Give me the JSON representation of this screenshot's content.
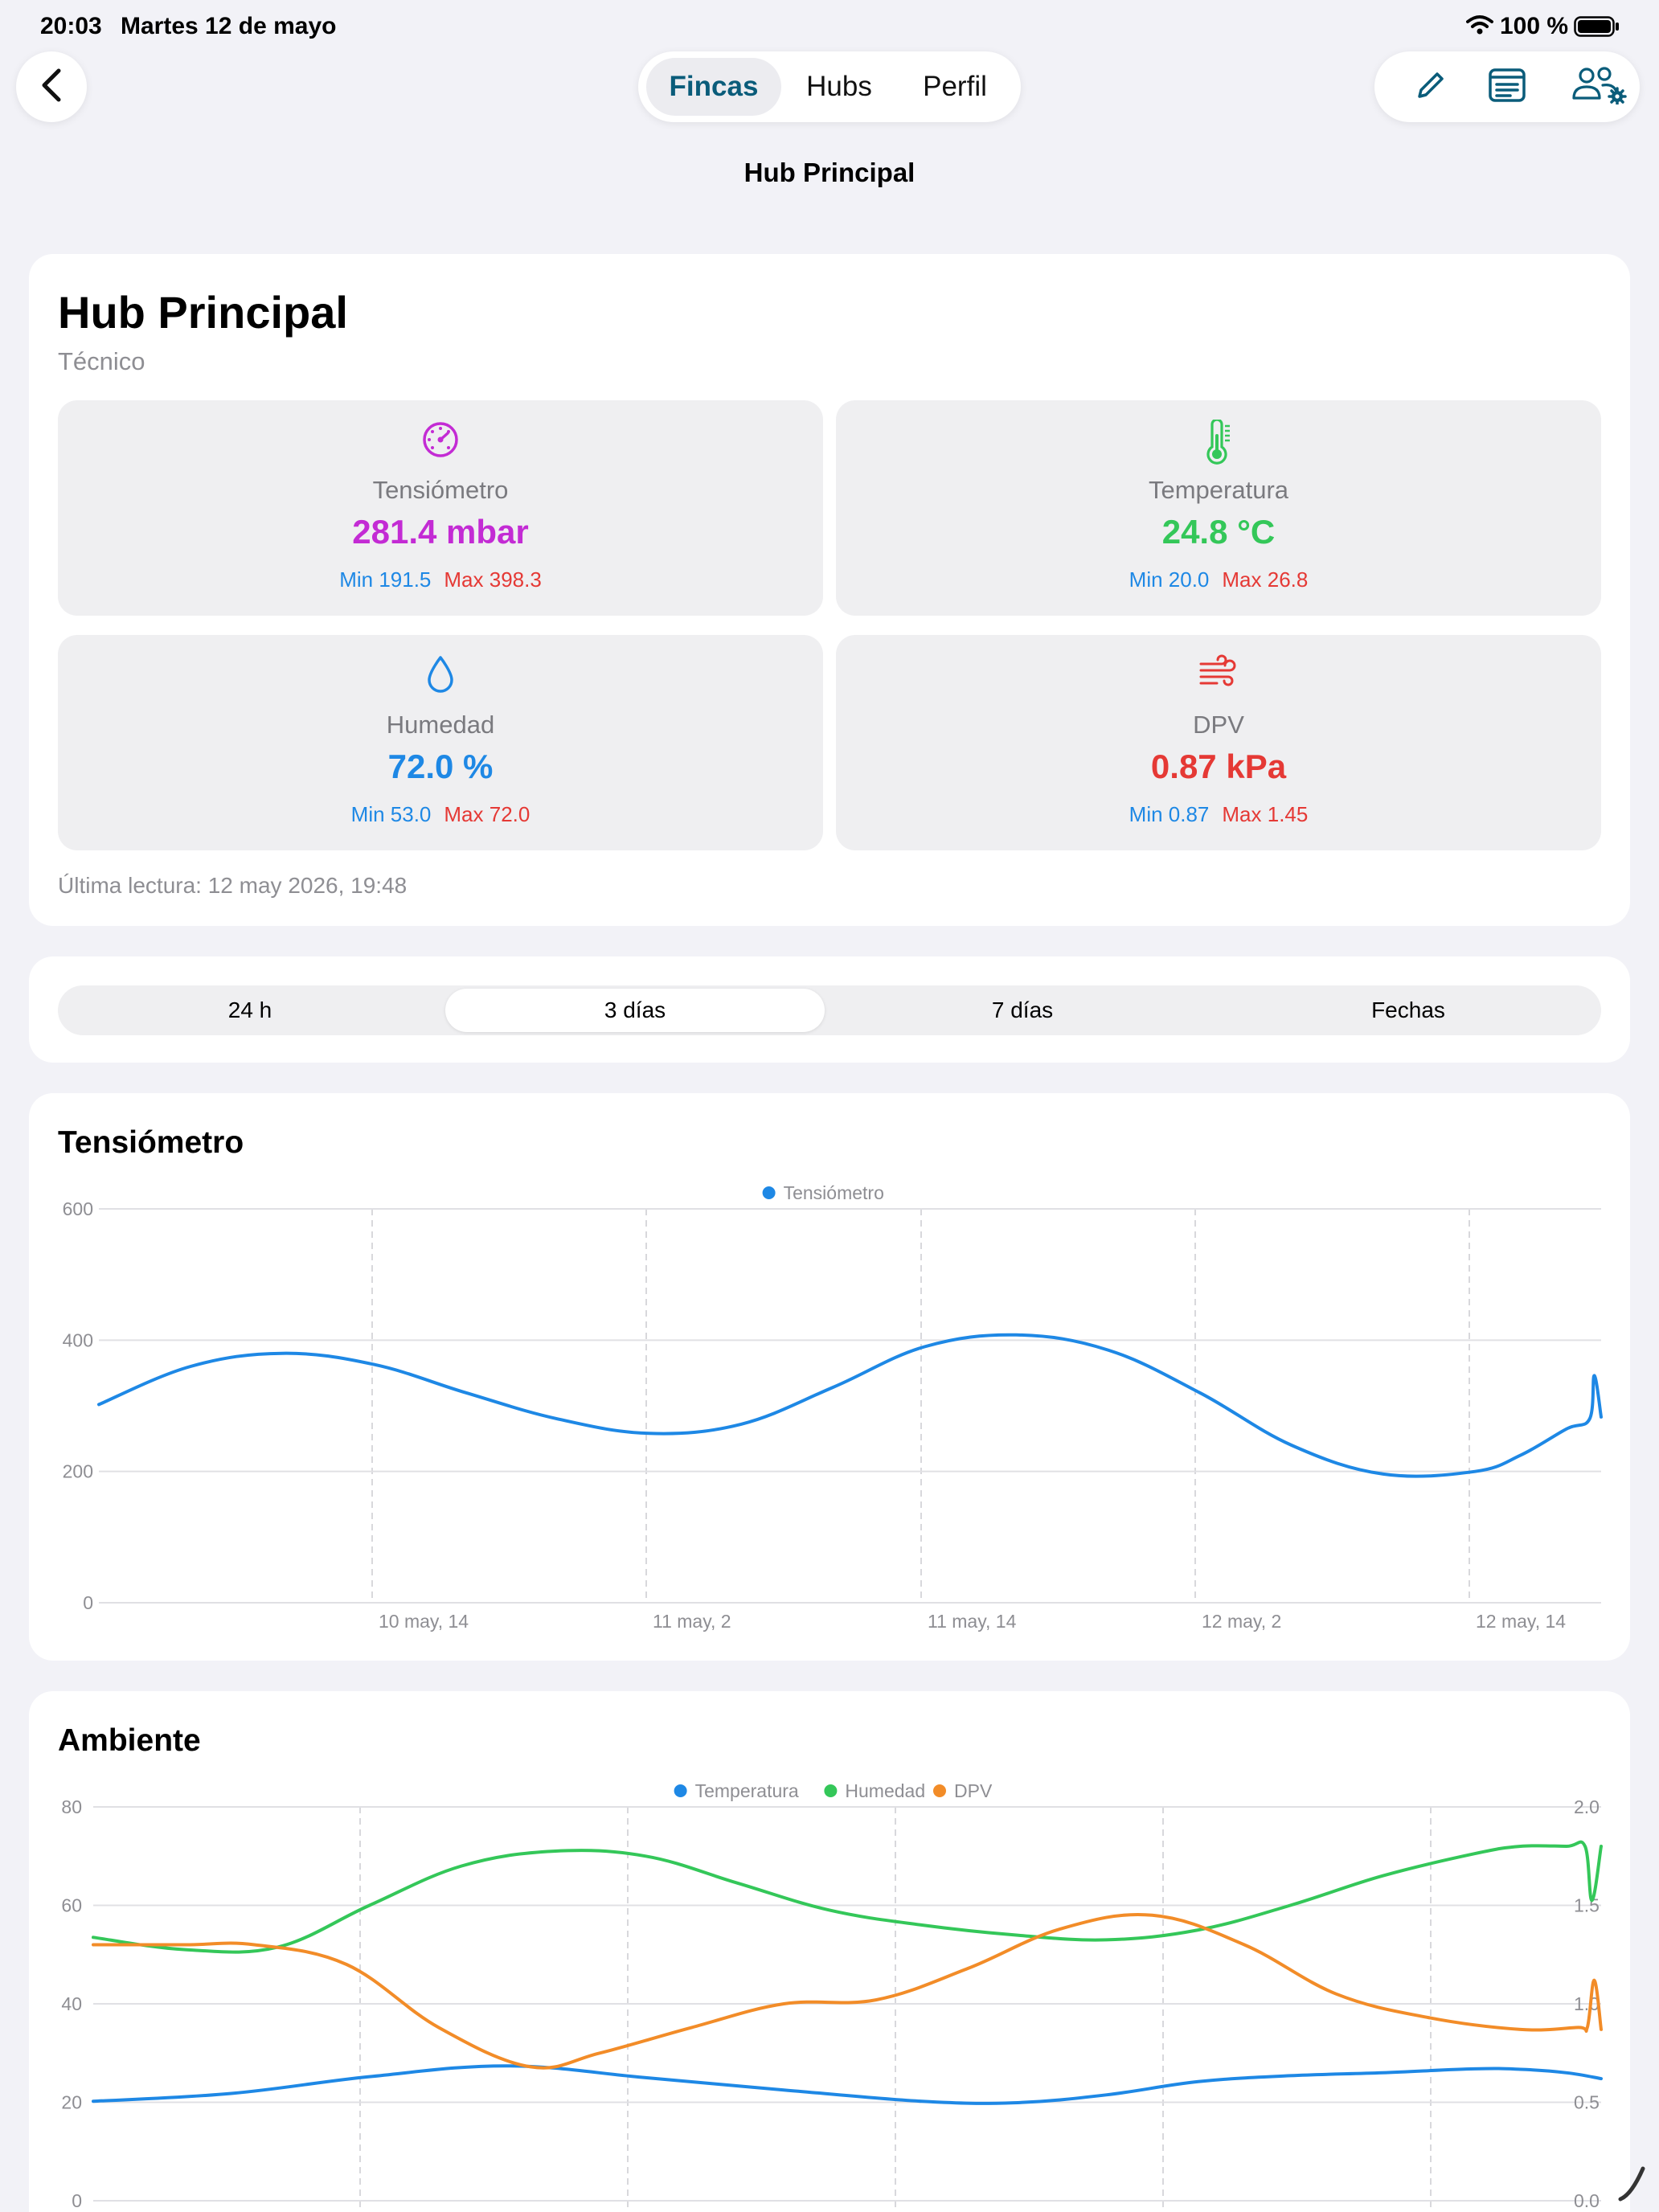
{
  "status": {
    "time": "20:03",
    "date": "Martes 12 de mayo",
    "battery": "100 %"
  },
  "nav": {
    "tabs": [
      {
        "label": "Fincas",
        "active": true
      },
      {
        "label": "Hubs",
        "active": false
      },
      {
        "label": "Perfil",
        "active": false
      }
    ],
    "title": "Hub Principal",
    "icons": [
      "chevron-left-icon",
      "pencil-icon",
      "list-icon",
      "users-gear-icon"
    ]
  },
  "hub": {
    "title": "Hub Principal",
    "role": "Técnico",
    "tiles": [
      {
        "name": "Tensiómetro",
        "value": "281.4 mbar",
        "min": "Min 191.5",
        "max": "Max 398.3",
        "color": "#C32BD4",
        "icon": "gauge-icon"
      },
      {
        "name": "Temperatura",
        "value": "24.8 °C",
        "min": "Min 20.0",
        "max": "Max 26.8",
        "color": "#34C759",
        "icon": "thermometer-icon"
      },
      {
        "name": "Humedad",
        "value": "72.0 %",
        "min": "Min 53.0",
        "max": "Max 72.0",
        "color": "#1E88E5",
        "icon": "drop-icon"
      },
      {
        "name": "DPV",
        "value": "0.87 kPa",
        "min": "Min 0.87",
        "max": "Max 1.45",
        "color": "#E53935",
        "icon": "wind-icon"
      }
    ],
    "last_reading": "Última lectura: 12 may 2026, 19:48"
  },
  "ranges": {
    "options": [
      "24 h",
      "3 días",
      "7 días",
      "Fechas"
    ],
    "selected": "3 días"
  },
  "chart_data": [
    {
      "type": "line",
      "title": "Tensiómetro",
      "ylim": [
        0,
        600
      ],
      "yticks": [
        "0",
        "200",
        "400",
        "600"
      ],
      "xtick_labels": [
        "10 may, 14",
        "11 may, 2",
        "11 may, 14",
        "12 may, 2",
        "12 may, 14"
      ],
      "xlim": [
        0,
        65.5
      ],
      "legend": "top-center",
      "grid": true,
      "series": [
        {
          "name": "Tensiómetro",
          "color": "#1E88E5",
          "x": [
            0,
            4,
            8,
            12,
            16,
            20,
            24,
            28,
            32,
            36,
            40,
            44,
            48,
            52,
            56,
            60,
            62,
            64,
            65,
            65.2,
            65.5
          ],
          "y": [
            302,
            360,
            380,
            363,
            320,
            280,
            258,
            272,
            328,
            390,
            408,
            385,
            320,
            240,
            196,
            200,
            225,
            265,
            280,
            346,
            283
          ]
        }
      ]
    },
    {
      "type": "line",
      "title": "Ambiente",
      "ylim": [
        0,
        80
      ],
      "yticks": [
        "0",
        "20",
        "40",
        "60",
        "80"
      ],
      "y2lim": [
        0,
        2.0
      ],
      "y2ticks": [
        "0.0",
        "0.5",
        "1.0",
        "1.5",
        "2.0"
      ],
      "xlim": [
        0,
        65.5
      ],
      "legend": "top-center",
      "grid": true,
      "series": [
        {
          "name": "Temperatura",
          "color": "#1E88E5",
          "axis": "left",
          "x": [
            0,
            6,
            12,
            18,
            24,
            30,
            36,
            40,
            44,
            48,
            52,
            56,
            60,
            62,
            64,
            65.5
          ],
          "y": [
            20.2,
            21.8,
            25.2,
            27.4,
            25.0,
            22.5,
            20.2,
            19.9,
            21.5,
            24.2,
            25.4,
            26.0,
            26.8,
            26.7,
            26.0,
            24.8
          ]
        },
        {
          "name": "Humedad",
          "color": "#34C759",
          "axis": "left",
          "x": [
            0,
            4,
            8,
            12,
            16,
            20,
            24,
            28,
            32,
            36,
            40,
            44,
            48,
            52,
            56,
            60,
            62,
            64,
            64.8,
            65.1,
            65.5
          ],
          "y": [
            53.5,
            51,
            51.5,
            60,
            68,
            71,
            70,
            64.5,
            59,
            56,
            54,
            53,
            55,
            60,
            66,
            70.5,
            72,
            72,
            72,
            61,
            72
          ]
        },
        {
          "name": "DPV",
          "color": "#F28C28",
          "axis": "right",
          "x": [
            0,
            4,
            7,
            11,
            15,
            19,
            22,
            26,
            30,
            34,
            38,
            42,
            46,
            50,
            54,
            58,
            62,
            64.5,
            64.9,
            65.2,
            65.5
          ],
          "y": [
            1.3,
            1.3,
            1.3,
            1.2,
            0.88,
            0.68,
            0.75,
            0.88,
            1.0,
            1.02,
            1.18,
            1.38,
            1.45,
            1.3,
            1.05,
            0.93,
            0.87,
            0.88,
            0.88,
            1.12,
            0.87
          ]
        }
      ]
    }
  ]
}
